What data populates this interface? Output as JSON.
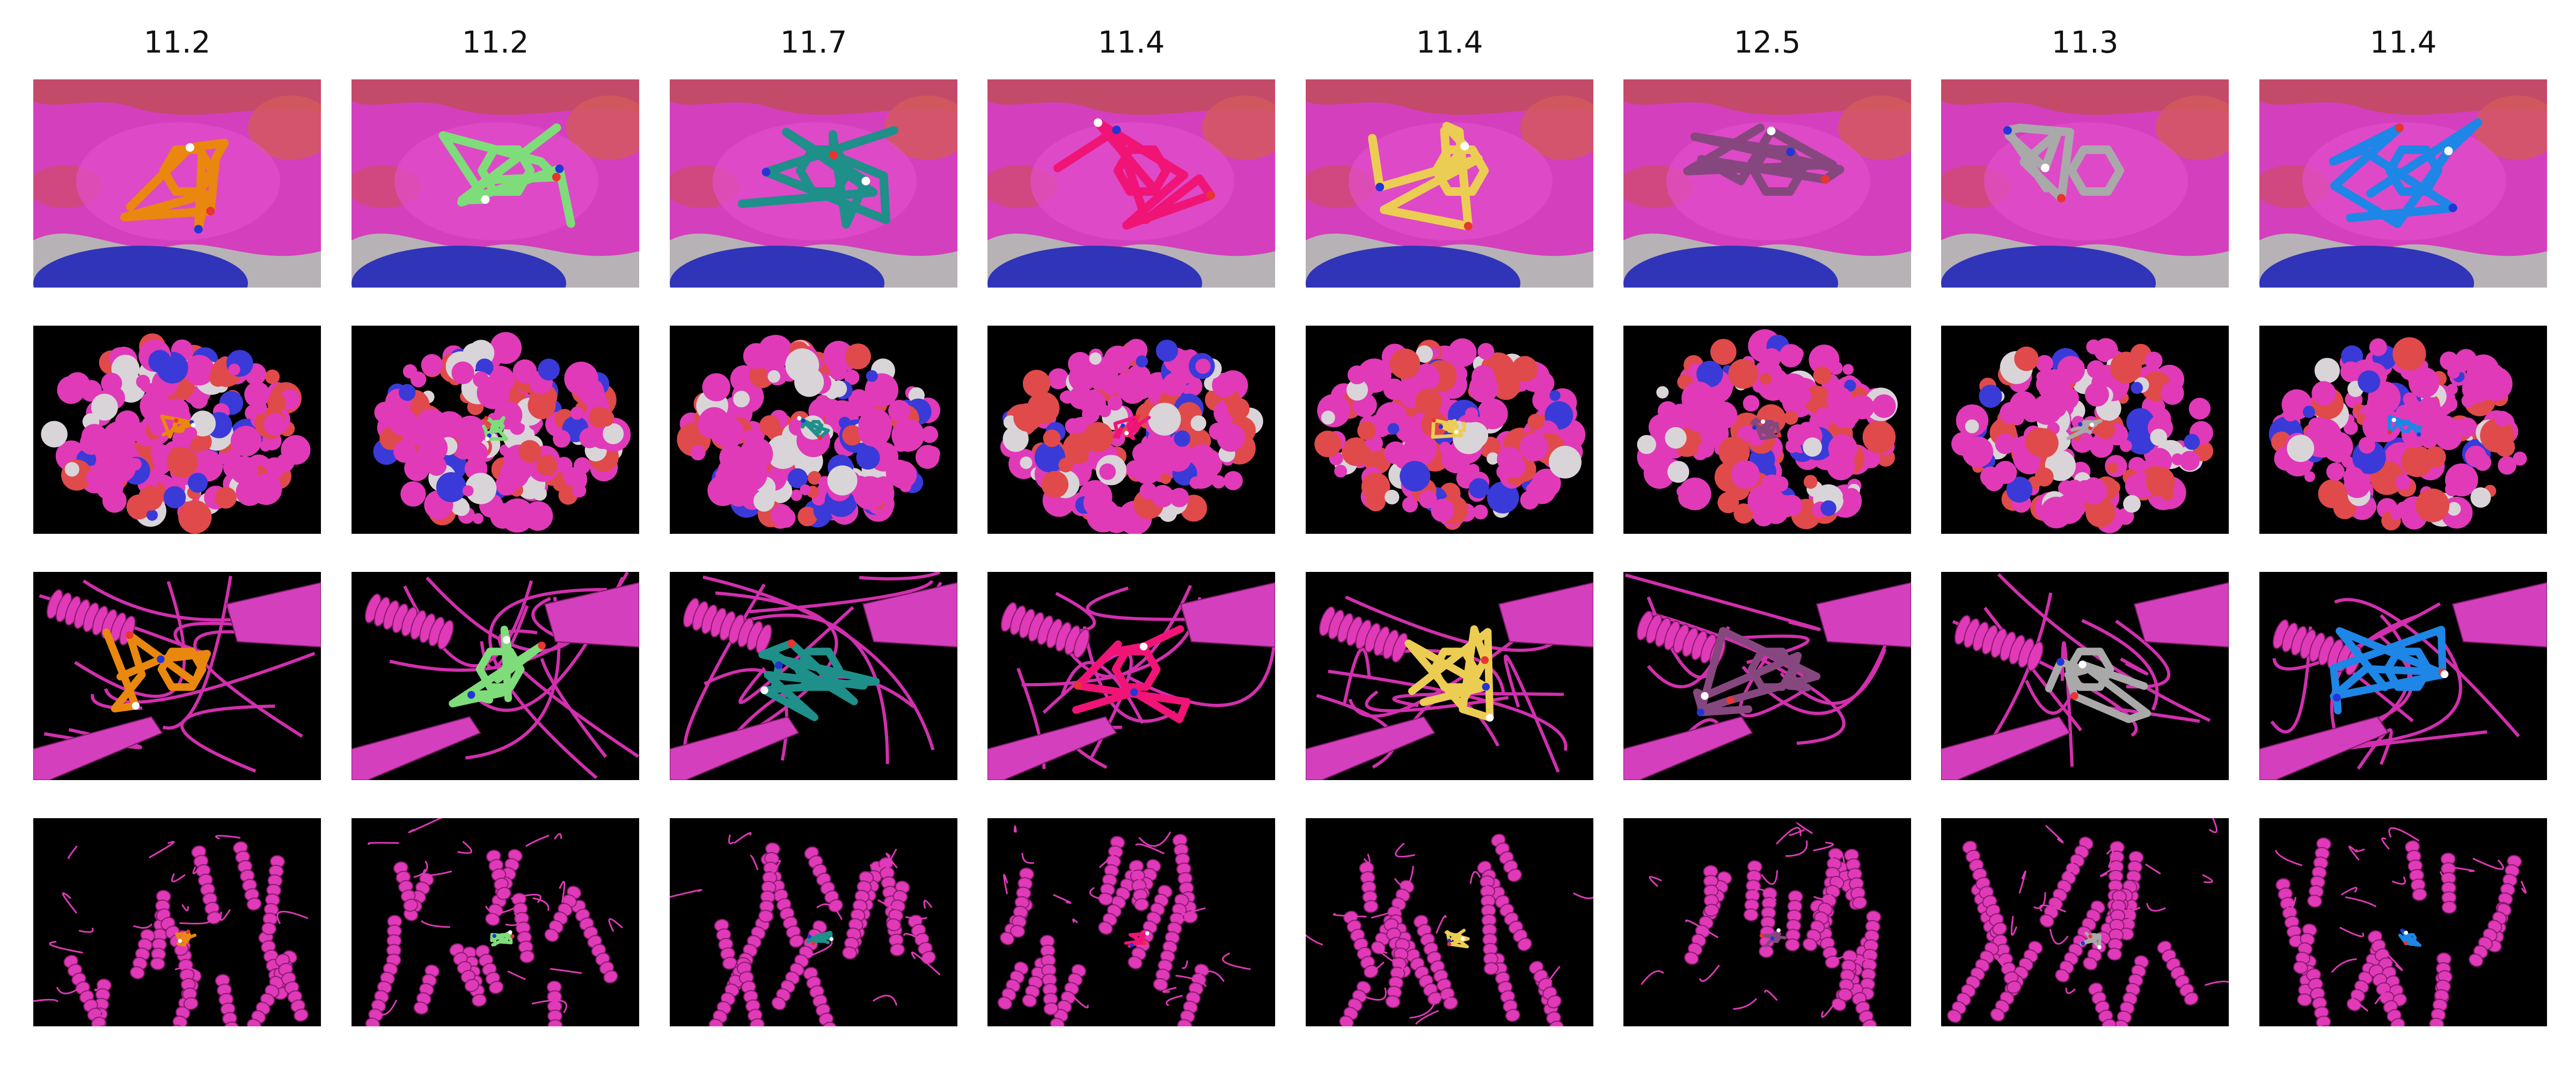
{
  "figure": {
    "scores": [
      "11.2",
      "11.2",
      "11.7",
      "11.4",
      "11.4",
      "12.5",
      "11.3",
      "11.4"
    ],
    "ligand_colors": [
      "#e9870f",
      "#7fdc7a",
      "#1f8f8a",
      "#f01477",
      "#eccd53",
      "#86477f",
      "#a9a9a9",
      "#1e86e6"
    ],
    "protein_color": "#e03ab8",
    "background_color": "#000000",
    "rows": [
      {
        "view": "pocket-surface-closeup"
      },
      {
        "view": "full-protein-surface"
      },
      {
        "view": "pocket-cartoon-closeup"
      },
      {
        "view": "full-protein-cartoon"
      }
    ]
  }
}
